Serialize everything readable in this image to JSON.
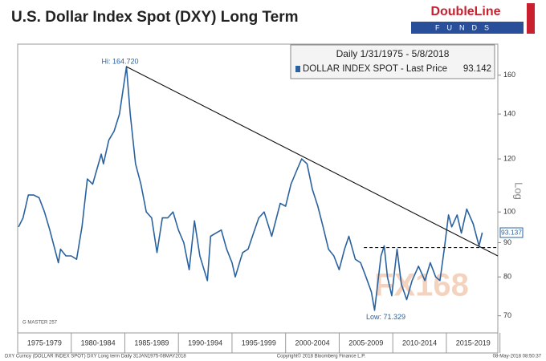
{
  "chart_data": {
    "type": "line",
    "title": "U.S. Dollar Index Spot (DXY) Long Term",
    "logo": {
      "brand": "DoubleLine",
      "sub": "FUNDS"
    },
    "legend_header": "Daily 1/31/1975 - 5/8/2018",
    "last_price": 93.142,
    "last_tag": 93.137,
    "y_axis_label": "Log",
    "log_scale": true,
    "series": [
      {
        "name": "DOLLAR INDEX SPOT - Last Price",
        "color": "#2a62a0",
        "x": [
          1975.08,
          1975.5,
          1976,
          1976.5,
          1977,
          1977.5,
          1978,
          1978.8,
          1979,
          1979.5,
          1980,
          1980.5,
          1981,
          1981.5,
          1982,
          1982.8,
          1983,
          1983.5,
          1984,
          1984.5,
          1985.15,
          1985.5,
          1986,
          1986.5,
          1987,
          1987.5,
          1988,
          1988.5,
          1989,
          1989.5,
          1990,
          1990.5,
          1991,
          1991.5,
          1992,
          1992.7,
          1993,
          1993.5,
          1994,
          1994.5,
          1995,
          1995.3,
          1995.8,
          1996,
          1996.5,
          1997,
          1997.5,
          1998,
          1998.7,
          1999,
          1999.5,
          2000,
          2000.5,
          2001,
          2001.5,
          2002,
          2002.5,
          2003,
          2003.5,
          2004,
          2004.5,
          2005,
          2005.5,
          2005.9,
          2006.5,
          2007,
          2007.5,
          2008,
          2008.3,
          2008.9,
          2009.2,
          2009.5,
          2009.9,
          2010.4,
          2010.8,
          2011.3,
          2011.8,
          2012.4,
          2013,
          2013.5,
          2014,
          2014.4,
          2014.8,
          2015.2,
          2015.5,
          2016,
          2016.4,
          2016.9,
          2017.5,
          2018.05,
          2018.35
        ],
        "values": [
          95,
          98,
          106,
          106,
          105,
          100,
          94,
          84,
          88,
          86,
          86,
          85,
          95,
          112,
          110,
          122,
          118,
          128,
          132,
          140,
          164.72,
          140,
          118,
          110,
          100,
          98,
          87,
          98,
          98,
          100,
          94,
          90,
          82,
          97,
          86,
          79,
          92,
          93,
          94,
          88,
          84,
          80,
          85,
          87,
          88,
          93,
          98,
          100,
          92,
          96,
          103,
          102,
          110,
          115,
          120,
          118,
          108,
          102,
          95,
          88,
          86,
          82,
          88,
          92,
          85,
          84,
          80,
          76,
          71.329,
          86,
          89,
          80,
          75,
          88,
          78,
          74,
          79,
          83,
          79,
          84,
          80,
          79,
          88,
          99,
          95,
          99,
          93,
          101,
          96,
          89,
          93.142
        ]
      }
    ],
    "trendline": {
      "x": [
        1985.15,
        2019.8
      ],
      "values": [
        164.72,
        86
      ]
    },
    "support": {
      "x": [
        2007.3,
        2019.8
      ],
      "values": [
        88.5,
        88.5
      ]
    },
    "annotations": [
      {
        "text": "Hi: 164.720",
        "x": 1985.15,
        "value": 164.72
      },
      {
        "text": "Low: 71.329",
        "x": 2008.3,
        "value": 71.329
      }
    ],
    "watermark": "FX168",
    "xlim": [
      1975,
      2019.8
    ],
    "xticks": [
      {
        "value": 1977.5,
        "label": "1975-1979"
      },
      {
        "value": 1982.5,
        "label": "1980-1984"
      },
      {
        "value": 1987.5,
        "label": "1985-1989"
      },
      {
        "value": 1992.5,
        "label": "1990-1994"
      },
      {
        "value": 1997.5,
        "label": "1995-1999"
      },
      {
        "value": 2002.5,
        "label": "2000-2004"
      },
      {
        "value": 2007.5,
        "label": "2005-2009"
      },
      {
        "value": 2012.5,
        "label": "2010-2014"
      },
      {
        "value": 2017.5,
        "label": "2015-2019"
      }
    ],
    "ylim": [
      66,
      178
    ],
    "yticks": [
      70,
      80,
      90,
      100,
      120,
      140,
      160
    ],
    "note": "G MASTER 257",
    "footer_left": "DXY Curncy (DOLLAR INDEX SPOT) DXY Long term  Daily 31JAN1975-08MAY2018",
    "footer_center": "Copyright© 2018 Bloomberg Finance L.P.",
    "footer_right": "08-May-2018 08:50:37"
  }
}
